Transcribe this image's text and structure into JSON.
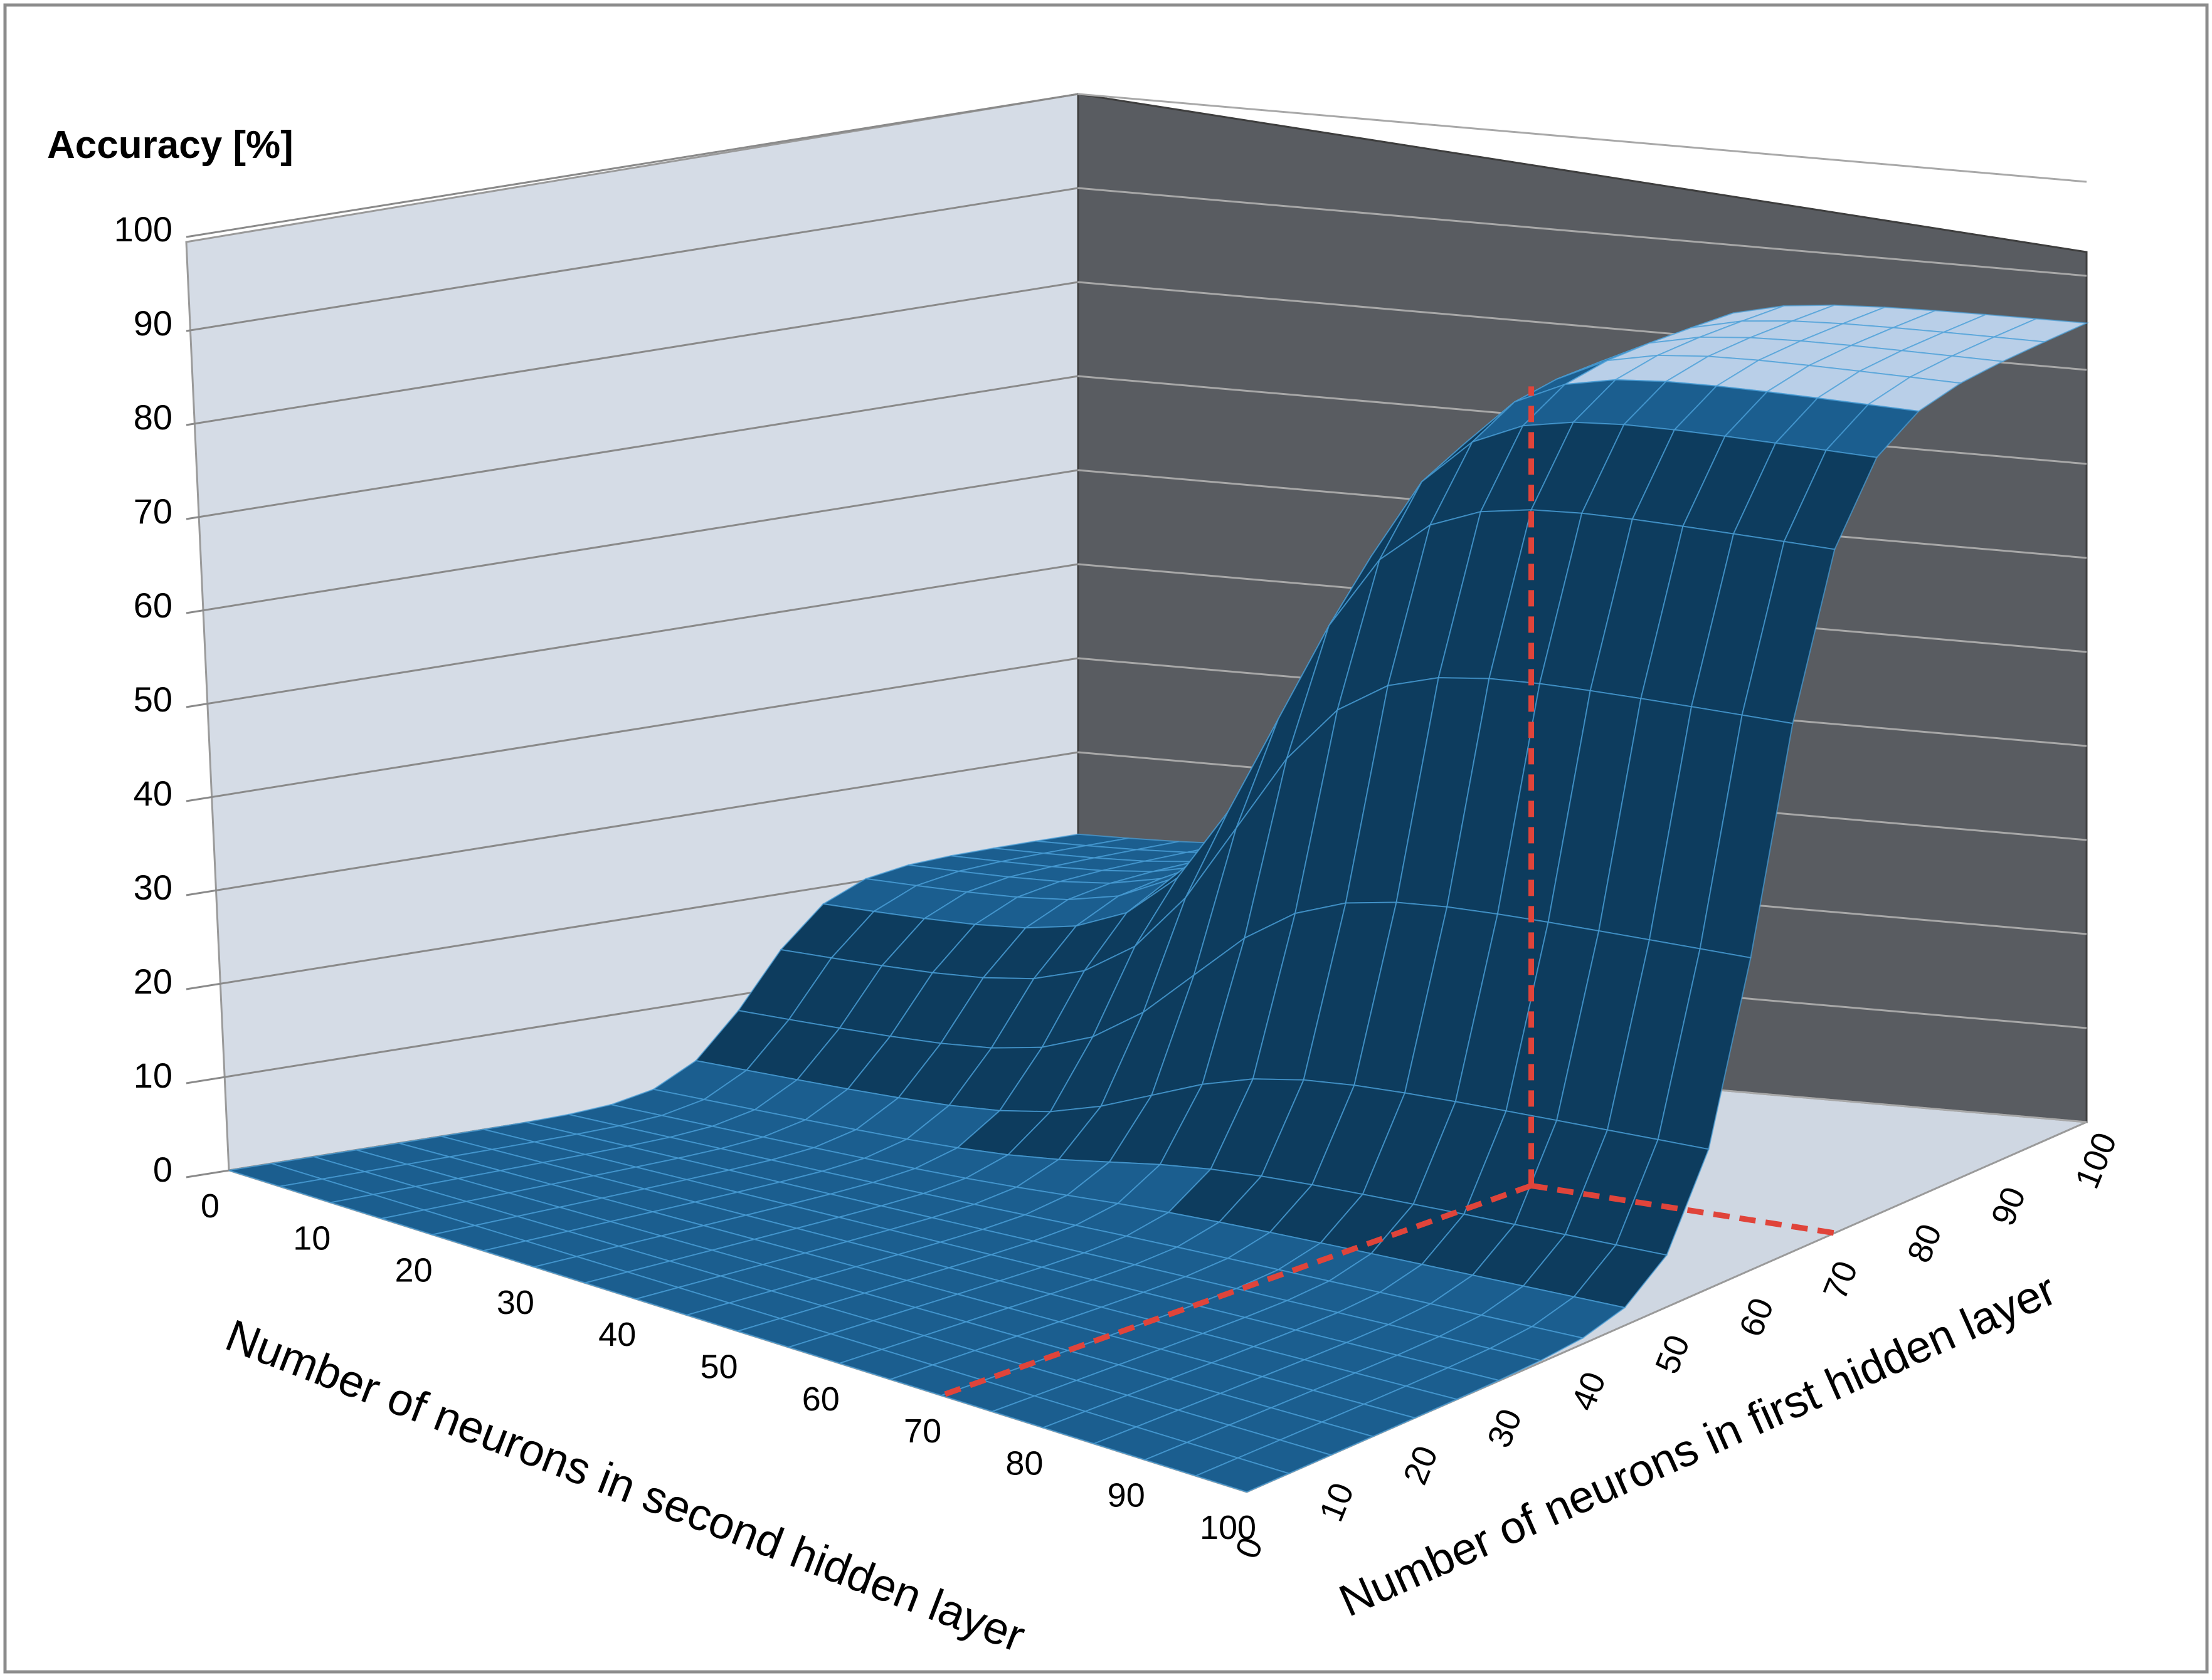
{
  "chart_data": {
    "type": "surface",
    "title": "",
    "zlabel": "Accuracy [%]",
    "xlabel": "Number of neurons in second hidden layer",
    "ylabel": "Number of neurons in first hidden layer",
    "z_ticks": [
      "0",
      "10",
      "20",
      "30",
      "40",
      "50",
      "60",
      "70",
      "80",
      "90",
      "100"
    ],
    "x_ticks": [
      "0",
      "10",
      "20",
      "30",
      "40",
      "50",
      "60",
      "70",
      "80",
      "90",
      "100"
    ],
    "y_ticks": [
      "0",
      "10",
      "20",
      "30",
      "40",
      "50",
      "60",
      "70",
      "80",
      "90",
      "100"
    ],
    "zlim": [
      0,
      100
    ],
    "grid": true,
    "surface_color": "#1b5e8f",
    "wireframe_color": "#4a9fd8",
    "guide_color": "#e0443a",
    "highlight": {
      "second_layer": 70,
      "first_layer": 70,
      "accuracy": 85
    },
    "description_of_values": "Accuracy is ~0 for small layer sizes and rises steeply (sigmoid-like) to ~85 once both layers exceed ~40-60 neurons."
  }
}
